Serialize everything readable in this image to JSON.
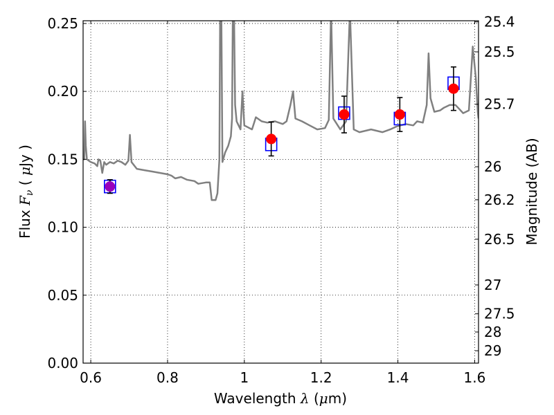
{
  "chart_data": {
    "type": "scatter",
    "title": "",
    "xlabel_parts": [
      "Wavelength ",
      "λ",
      " (",
      "μ",
      "m)"
    ],
    "ylabel_parts": [
      "Flux ",
      "F",
      "ν",
      " ( ",
      "μ",
      "Jy )"
    ],
    "y2label": "Magnitude (AB)",
    "xlim": [
      0.58,
      1.61
    ],
    "ylim": [
      0.0,
      0.252
    ],
    "grid": true,
    "x_ticks": [
      {
        "value": 0.6,
        "label": "0.6"
      },
      {
        "value": 0.8,
        "label": "0.8"
      },
      {
        "value": 1.0,
        "label": "1"
      },
      {
        "value": 1.2,
        "label": "1.2"
      },
      {
        "value": 1.4,
        "label": "1.4"
      },
      {
        "value": 1.6,
        "label": "1.6"
      }
    ],
    "y_ticks": [
      {
        "value": 0.0,
        "label": "0.00"
      },
      {
        "value": 0.05,
        "label": "0.05"
      },
      {
        "value": 0.1,
        "label": "0.10"
      },
      {
        "value": 0.15,
        "label": "0.15"
      },
      {
        "value": 0.2,
        "label": "0.20"
      },
      {
        "value": 0.25,
        "label": "0.25"
      }
    ],
    "y2_ticks": [
      "25.4",
      "25.5",
      "25.7",
      "26",
      "26.2",
      "26.5",
      "27",
      "27.5",
      "28",
      "29"
    ],
    "series": [
      {
        "marker": "square",
        "color": "#0000ff",
        "points": [
          {
            "x": 0.65,
            "y": 0.13
          },
          {
            "x": 1.07,
            "y": 0.161
          },
          {
            "x": 1.26,
            "y": 0.184
          },
          {
            "x": 1.405,
            "y": 0.18
          },
          {
            "x": 1.545,
            "y": 0.206
          }
        ]
      },
      {
        "marker": "circle",
        "color": "#ff0000",
        "points": [
          {
            "x": 0.65,
            "y": 0.13,
            "yerr": 0.005,
            "color": "#9900bb"
          },
          {
            "x": 1.07,
            "y": 0.165,
            "yerr": 0.0125
          },
          {
            "x": 1.26,
            "y": 0.183,
            "yerr": 0.0135
          },
          {
            "x": 1.405,
            "y": 0.183,
            "yerr": 0.0125
          },
          {
            "x": 1.545,
            "y": 0.202,
            "yerr": 0.016
          }
        ]
      },
      {
        "type": "line",
        "color": "#808080",
        "points": [
          [
            0.58,
            0.15
          ],
          [
            0.583,
            0.15
          ],
          [
            0.585,
            0.178
          ],
          [
            0.587,
            0.16
          ],
          [
            0.59,
            0.15
          ],
          [
            0.6,
            0.148
          ],
          [
            0.61,
            0.147
          ],
          [
            0.617,
            0.145
          ],
          [
            0.62,
            0.15
          ],
          [
            0.625,
            0.149
          ],
          [
            0.63,
            0.14
          ],
          [
            0.635,
            0.148
          ],
          [
            0.64,
            0.146
          ],
          [
            0.65,
            0.148
          ],
          [
            0.66,
            0.147
          ],
          [
            0.67,
            0.149
          ],
          [
            0.68,
            0.148
          ],
          [
            0.69,
            0.146
          ],
          [
            0.698,
            0.149
          ],
          [
            0.702,
            0.168
          ],
          [
            0.706,
            0.148
          ],
          [
            0.72,
            0.143
          ],
          [
            0.74,
            0.142
          ],
          [
            0.76,
            0.141
          ],
          [
            0.78,
            0.14
          ],
          [
            0.8,
            0.139
          ],
          [
            0.81,
            0.138
          ],
          [
            0.82,
            0.136
          ],
          [
            0.835,
            0.137
          ],
          [
            0.85,
            0.135
          ],
          [
            0.87,
            0.134
          ],
          [
            0.88,
            0.132
          ],
          [
            0.9,
            0.133
          ],
          [
            0.91,
            0.133
          ],
          [
            0.915,
            0.12
          ],
          [
            0.925,
            0.12
          ],
          [
            0.93,
            0.125
          ],
          [
            0.935,
            0.15
          ],
          [
            0.937,
            0.26
          ],
          [
            0.94,
            0.26
          ],
          [
            0.943,
            0.148
          ],
          [
            0.95,
            0.155
          ],
          [
            0.958,
            0.16
          ],
          [
            0.965,
            0.167
          ],
          [
            0.968,
            0.18
          ],
          [
            0.97,
            0.26
          ],
          [
            0.973,
            0.26
          ],
          [
            0.976,
            0.19
          ],
          [
            0.98,
            0.178
          ],
          [
            0.99,
            0.172
          ],
          [
            0.995,
            0.2
          ],
          [
            1.0,
            0.175
          ],
          [
            1.02,
            0.172
          ],
          [
            1.03,
            0.181
          ],
          [
            1.045,
            0.178
          ],
          [
            1.06,
            0.177
          ],
          [
            1.08,
            0.178
          ],
          [
            1.1,
            0.176
          ],
          [
            1.11,
            0.178
          ],
          [
            1.12,
            0.19
          ],
          [
            1.127,
            0.2
          ],
          [
            1.133,
            0.18
          ],
          [
            1.15,
            0.178
          ],
          [
            1.17,
            0.175
          ],
          [
            1.19,
            0.172
          ],
          [
            1.21,
            0.173
          ],
          [
            1.22,
            0.179
          ],
          [
            1.226,
            0.26
          ],
          [
            1.232,
            0.18
          ],
          [
            1.25,
            0.172
          ],
          [
            1.265,
            0.178
          ],
          [
            1.275,
            0.26
          ],
          [
            1.285,
            0.172
          ],
          [
            1.3,
            0.17
          ],
          [
            1.33,
            0.172
          ],
          [
            1.36,
            0.17
          ],
          [
            1.38,
            0.172
          ],
          [
            1.395,
            0.174
          ],
          [
            1.42,
            0.176
          ],
          [
            1.44,
            0.175
          ],
          [
            1.45,
            0.178
          ],
          [
            1.465,
            0.177
          ],
          [
            1.475,
            0.19
          ],
          [
            1.48,
            0.228
          ],
          [
            1.485,
            0.195
          ],
          [
            1.495,
            0.185
          ],
          [
            1.51,
            0.186
          ],
          [
            1.52,
            0.188
          ],
          [
            1.535,
            0.19
          ],
          [
            1.55,
            0.19
          ],
          [
            1.56,
            0.187
          ],
          [
            1.57,
            0.184
          ],
          [
            1.585,
            0.186
          ],
          [
            1.595,
            0.233
          ],
          [
            1.603,
            0.21
          ],
          [
            1.608,
            0.185
          ],
          [
            1.61,
            0.18
          ]
        ]
      }
    ]
  }
}
